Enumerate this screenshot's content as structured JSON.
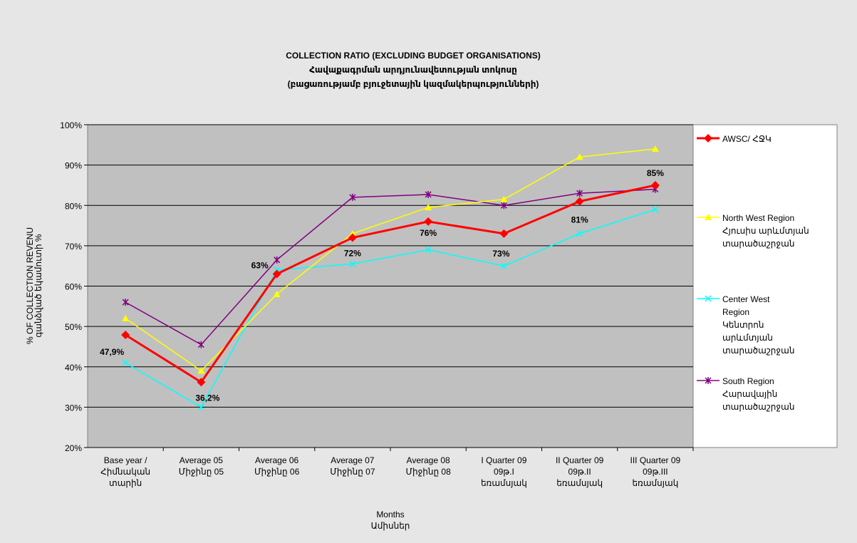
{
  "chart_data": {
    "type": "line",
    "title": [
      "COLLECTION RATIO (EXCLUDING BUDGET ORGANISATIONS)",
      "Հավաքագրման արդյունավետության տոկոսը",
      "(բացառությամբ բյուջետային կազմակերպությունների)"
    ],
    "y_label": [
      "% OF COLLECTION REVENU",
      "գանձված եկամուտի %"
    ],
    "x_label": [
      "Months",
      "Ամիսներ"
    ],
    "categories": [
      "Base year /\nՀիմնական\nտարին",
      "Average 05\nՄիջինը 05",
      "Average 06\nՄիջինը 06",
      "Average 07\nՄիջինը 07",
      "Average 08\nՄիջինը 08",
      "I Quarter 09\n09թ.I\nեռամսյակ",
      "II Quarter 09\n09թ.II\nեռամսյակ",
      "III Quarter 09\n09թ.III\nեռամսյակ"
    ],
    "ylim": [
      20,
      100
    ],
    "yticks": [
      {
        "value": 20,
        "label": "20%"
      },
      {
        "value": 30,
        "label": "30%"
      },
      {
        "value": 40,
        "label": "40%"
      },
      {
        "value": 50,
        "label": "50%"
      },
      {
        "value": 60,
        "label": "60%"
      },
      {
        "value": 70,
        "label": "70%"
      },
      {
        "value": 80,
        "label": "80%"
      },
      {
        "value": 90,
        "label": "90%"
      },
      {
        "value": 100,
        "label": "100%"
      }
    ],
    "grid": true,
    "legend": "right",
    "series": [
      {
        "name": "AWSC/ ՀՋԿ",
        "color": "#ff0000",
        "marker": "diamond",
        "values": [
          47.9,
          36.2,
          63,
          72,
          76,
          73,
          81,
          85
        ],
        "value_labels": [
          "47,9%",
          "36,2%",
          "63%",
          "72%",
          "76%",
          "73%",
          "81%",
          "85%"
        ]
      },
      {
        "name": "North West Region\nՀյուսիս արևմտյան\nտարածաշրջան",
        "color": "#ffff00",
        "marker": "triangle",
        "values": [
          52,
          39,
          58,
          73,
          79.5,
          81.5,
          92,
          94
        ]
      },
      {
        "name": "Center West\nRegion\nԿենտրոն\nարևմտյան\nտարածաշրջան",
        "color": "#00ffff",
        "marker": "x",
        "values": [
          41,
          30,
          64,
          65.5,
          69,
          65,
          73,
          79
        ]
      },
      {
        "name": "South Region\nՀարավային\nտարածաշրջան",
        "color": "#800080",
        "marker": "star",
        "values": [
          56,
          45.5,
          66.5,
          82,
          82.7,
          80,
          83,
          84
        ]
      }
    ]
  }
}
